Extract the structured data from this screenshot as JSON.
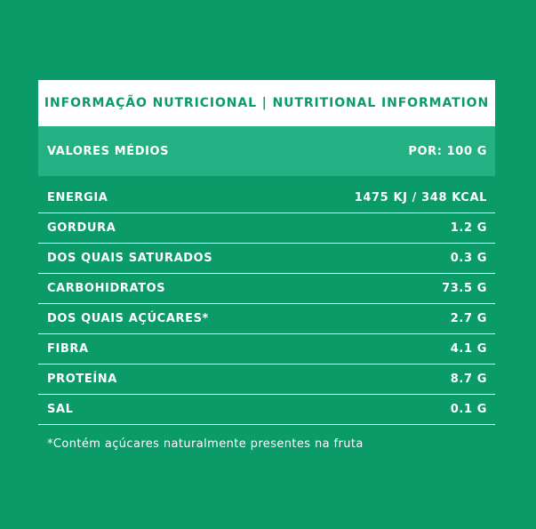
{
  "title": "INFORMAÇÃO NUTRICIONAL | NUTRITIONAL INFORMATION",
  "header": {
    "left": "VALORES MÉDIOS",
    "right": "POR: 100 G"
  },
  "rows": [
    {
      "label": "ENERGIA",
      "value": "1475 KJ / 348 KCAL"
    },
    {
      "label": "GORDURA",
      "value": "1.2 G"
    },
    {
      "label": "DOS QUAIS SATURADOS",
      "value": "0.3 G"
    },
    {
      "label": "CARBOHIDRATOS",
      "value": "73.5 G"
    },
    {
      "label": "DOS QUAIS AÇÚCARES*",
      "value": "2.7 G"
    },
    {
      "label": "FIBRA",
      "value": "4.1 G"
    },
    {
      "label": "PROTEÍNA",
      "value": "8.7 G"
    },
    {
      "label": "SAL",
      "value": "0.1 G"
    }
  ],
  "footnote": "*Contém  açúcares naturalmente presentes na fruta",
  "colors": {
    "background": "#0b9b68",
    "header_band": "#23b184",
    "title_band": "#ffffff",
    "text": "#ffffff"
  }
}
